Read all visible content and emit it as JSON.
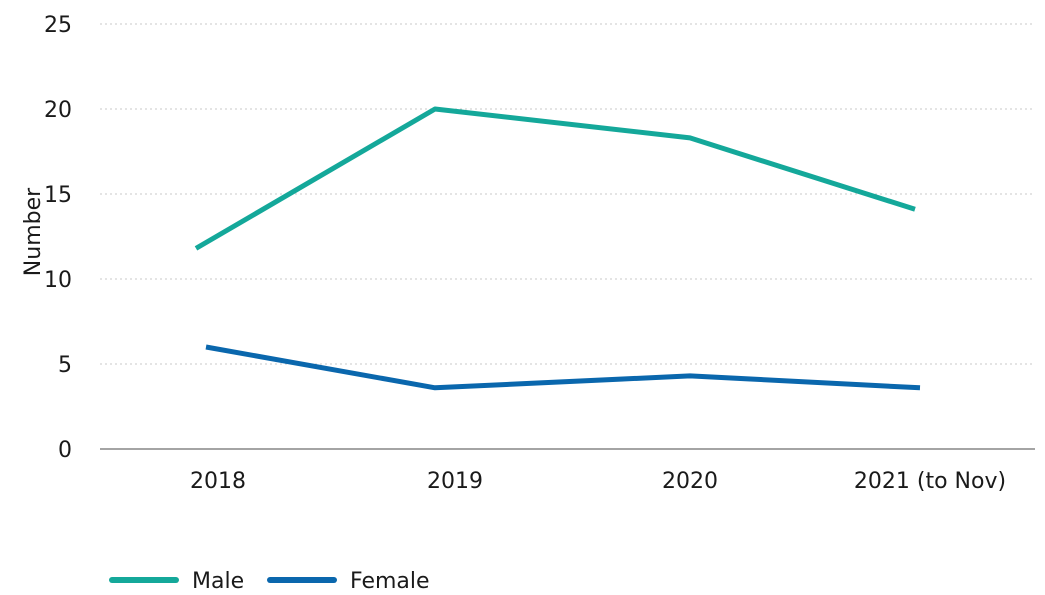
{
  "chart_data": {
    "type": "line",
    "categories": [
      "2018",
      "2019",
      "2020",
      "2021 (to Nov)"
    ],
    "series": [
      {
        "name": "Male",
        "values": [
          11.8,
          20.0,
          18.3,
          14.1
        ],
        "color": "#14a89a"
      },
      {
        "name": "Female",
        "values": [
          6.0,
          3.6,
          4.3,
          3.6
        ],
        "color": "#0a67ad"
      }
    ],
    "ylabel": "Number",
    "xlabel": "",
    "ylim": [
      0,
      25
    ],
    "yticks": [
      0,
      5,
      10,
      15,
      20,
      25
    ],
    "grid": true,
    "legend_position": "bottom-left"
  }
}
